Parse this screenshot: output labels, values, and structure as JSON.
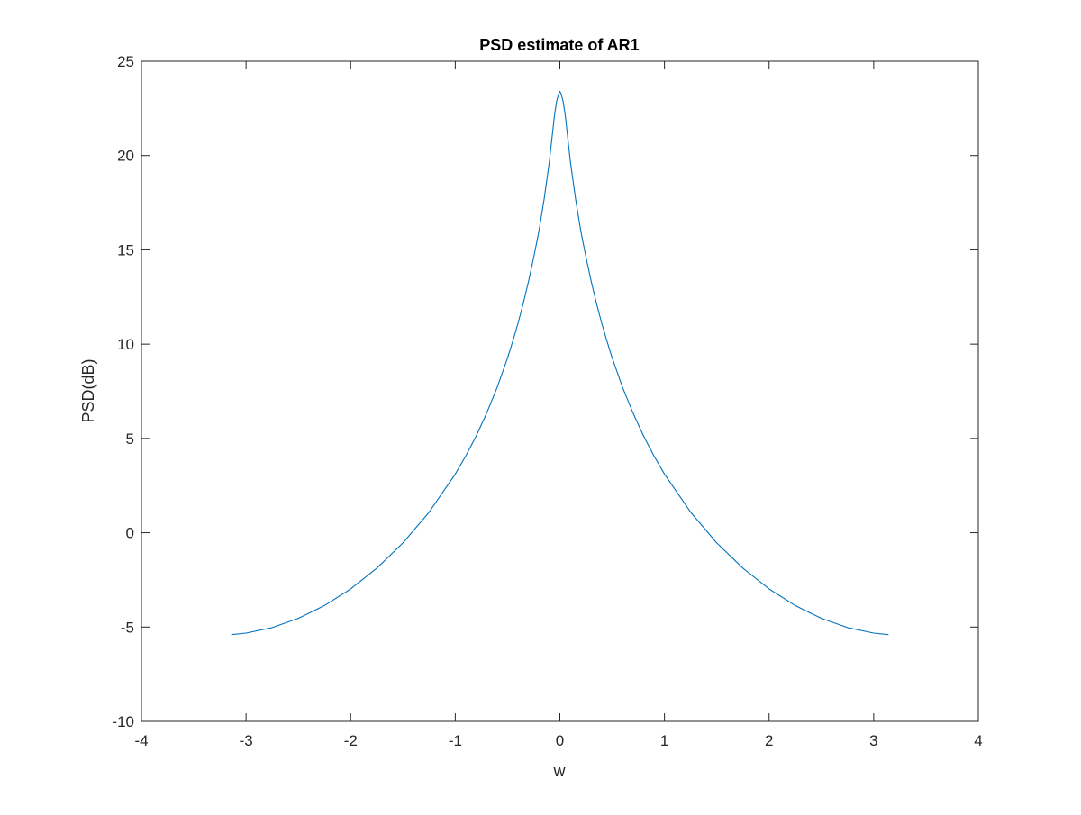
{
  "chart_data": {
    "type": "line",
    "title": "PSD estimate of AR1",
    "xlabel": "w",
    "ylabel": "PSD(dB)",
    "xlim": [
      -4,
      4
    ],
    "ylim": [
      -10,
      25
    ],
    "xticks": [
      -4,
      -3,
      -2,
      -1,
      0,
      1,
      2,
      3,
      4
    ],
    "yticks": [
      -10,
      -5,
      0,
      5,
      10,
      15,
      20,
      25
    ],
    "grid": false,
    "legend": "none",
    "series": [
      {
        "color": "#0072bd",
        "x": [
          -3.1416,
          -3.0,
          -2.75,
          -2.5,
          -2.25,
          -2.0,
          -1.75,
          -1.5,
          -1.25,
          -1.0,
          -0.9,
          -0.8,
          -0.7,
          -0.6,
          -0.5,
          -0.45,
          -0.4,
          -0.35,
          -0.3,
          -0.25,
          -0.2,
          -0.15,
          -0.1,
          -0.07,
          -0.05,
          -0.03,
          -0.01,
          0.0,
          0.01,
          0.03,
          0.05,
          0.07,
          0.1,
          0.15,
          0.2,
          0.25,
          0.3,
          0.35,
          0.4,
          0.45,
          0.5,
          0.6,
          0.7,
          0.8,
          0.9,
          1.0,
          1.25,
          1.5,
          1.75,
          2.0,
          2.25,
          2.5,
          2.75,
          3.0,
          3.1416
        ],
        "y": [
          -5.4,
          -5.32,
          -5.03,
          -4.54,
          -3.86,
          -2.98,
          -1.88,
          -0.54,
          1.09,
          3.11,
          4.07,
          5.13,
          6.34,
          7.7,
          9.27,
          10.16,
          11.11,
          12.16,
          13.32,
          14.6,
          16.0,
          17.7,
          19.7,
          21.2,
          22.2,
          22.9,
          23.3,
          23.4,
          23.3,
          22.9,
          22.2,
          21.2,
          19.7,
          17.7,
          16.0,
          14.6,
          13.32,
          12.16,
          11.11,
          10.16,
          9.27,
          7.7,
          6.34,
          5.13,
          4.07,
          3.11,
          1.09,
          -0.54,
          -1.88,
          -2.98,
          -3.86,
          -4.54,
          -5.03,
          -5.32,
          -5.4
        ]
      }
    ]
  }
}
